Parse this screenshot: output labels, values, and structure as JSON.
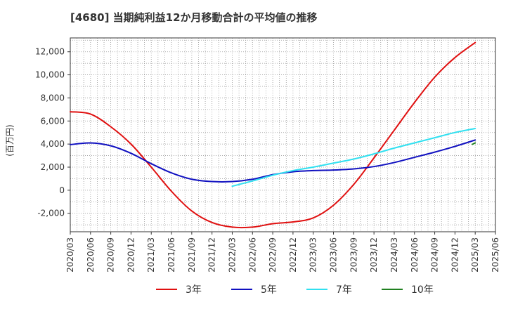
{
  "chart_data": {
    "type": "line",
    "title": "[4680]  当期純利益12か月移動合計の平均値の推移",
    "ylabel": "(百万円)",
    "xlabel": "",
    "ylim": [
      -3600,
      13200
    ],
    "xlim": [
      "2020/03",
      "2025/06"
    ],
    "grid": true,
    "legend_position": "bottom",
    "y_ticks": [
      -2000,
      0,
      2000,
      4000,
      6000,
      8000,
      10000,
      12000
    ],
    "y_tick_labels": [
      "-2,000",
      "0",
      "2,000",
      "4,000",
      "6,000",
      "8,000",
      "10,000",
      "12,000"
    ],
    "x_tick_labels": [
      "2020/03",
      "2020/06",
      "2020/09",
      "2020/12",
      "2021/03",
      "2021/06",
      "2021/09",
      "2021/12",
      "2022/03",
      "2022/06",
      "2022/09",
      "2022/12",
      "2023/03",
      "2023/06",
      "2023/09",
      "2023/12",
      "2024/03",
      "2024/06",
      "2024/09",
      "2024/12",
      "2025/03",
      "2025/06"
    ],
    "series": [
      {
        "name": "3年",
        "color": "#e01010",
        "points": [
          [
            "2020/03",
            6800
          ],
          [
            "2020/06",
            6600
          ],
          [
            "2020/09",
            5500
          ],
          [
            "2020/12",
            4000
          ],
          [
            "2021/03",
            2000
          ],
          [
            "2021/06",
            -100
          ],
          [
            "2021/09",
            -1800
          ],
          [
            "2021/12",
            -2800
          ],
          [
            "2022/03",
            -3200
          ],
          [
            "2022/06",
            -3200
          ],
          [
            "2022/09",
            -2900
          ],
          [
            "2022/12",
            -2750
          ],
          [
            "2023/03",
            -2400
          ],
          [
            "2023/06",
            -1300
          ],
          [
            "2023/09",
            500
          ],
          [
            "2023/12",
            2800
          ],
          [
            "2024/03",
            5200
          ],
          [
            "2024/06",
            7600
          ],
          [
            "2024/09",
            9800
          ],
          [
            "2024/12",
            11500
          ],
          [
            "2025/03",
            12800
          ]
        ]
      },
      {
        "name": "5年",
        "color": "#1010c0",
        "points": [
          [
            "2020/03",
            3950
          ],
          [
            "2020/06",
            4100
          ],
          [
            "2020/09",
            3850
          ],
          [
            "2020/12",
            3200
          ],
          [
            "2021/03",
            2300
          ],
          [
            "2021/06",
            1500
          ],
          [
            "2021/09",
            950
          ],
          [
            "2021/12",
            750
          ],
          [
            "2022/03",
            750
          ],
          [
            "2022/06",
            950
          ],
          [
            "2022/09",
            1350
          ],
          [
            "2022/12",
            1600
          ],
          [
            "2023/03",
            1700
          ],
          [
            "2023/06",
            1750
          ],
          [
            "2023/09",
            1850
          ],
          [
            "2023/12",
            2050
          ],
          [
            "2024/03",
            2400
          ],
          [
            "2024/06",
            2850
          ],
          [
            "2024/09",
            3300
          ],
          [
            "2024/12",
            3800
          ],
          [
            "2025/03",
            4350
          ]
        ]
      },
      {
        "name": "7年",
        "color": "#30e0f0",
        "points": [
          [
            "2022/03",
            350
          ],
          [
            "2022/06",
            800
          ],
          [
            "2022/09",
            1300
          ],
          [
            "2022/12",
            1700
          ],
          [
            "2023/03",
            2000
          ],
          [
            "2023/06",
            2350
          ],
          [
            "2023/09",
            2700
          ],
          [
            "2023/12",
            3150
          ],
          [
            "2024/03",
            3650
          ],
          [
            "2024/06",
            4100
          ],
          [
            "2024/09",
            4550
          ],
          [
            "2024/12",
            5000
          ],
          [
            "2025/03",
            5350
          ]
        ]
      },
      {
        "name": "10年",
        "color": "#208020",
        "points": [
          [
            "2025/03",
            4100
          ]
        ]
      }
    ]
  }
}
